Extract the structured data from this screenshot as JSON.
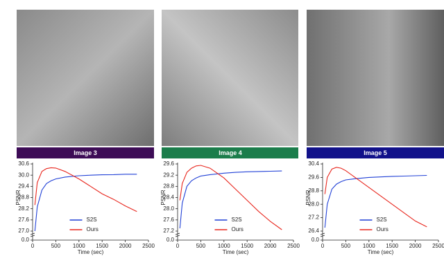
{
  "chart_data": [
    {
      "type": "line",
      "title": "Image 3",
      "title_color": "#3d0c56",
      "xlabel": "Time (sec)",
      "ylabel": "PSNR",
      "x": [
        50,
        100,
        200,
        300,
        400,
        500,
        700,
        1000,
        1250,
        1500,
        1750,
        2000,
        2250
      ],
      "series": [
        {
          "name": "S2S",
          "color": "#1f3fd6",
          "values": [
            27.0,
            28.3,
            29.2,
            29.55,
            29.7,
            29.8,
            29.9,
            29.97,
            30.0,
            30.02,
            30.03,
            30.05,
            30.05
          ]
        },
        {
          "name": "Ours",
          "color": "#e8251c",
          "values": [
            28.4,
            29.6,
            30.2,
            30.35,
            30.4,
            30.38,
            30.2,
            29.8,
            29.4,
            29.0,
            28.7,
            28.35,
            28.05
          ]
        }
      ],
      "xlim": [
        0,
        2500
      ],
      "xticks": [
        0,
        500,
        1000,
        1500,
        2000,
        2500
      ],
      "ylim": [
        27.0,
        30.6
      ],
      "yticks": [
        {
          "value": 27.0,
          "label": "27.0"
        },
        27.6,
        28.2,
        28.8,
        29.4,
        {
          "value": 30.0,
          "label": "30.0"
        },
        30.6
      ],
      "axis_break_tick": {
        "value": 0,
        "label": "0.0"
      },
      "legend": "lower center"
    },
    {
      "type": "line",
      "title": "Image 4",
      "title_color": "#1b7d4b",
      "xlabel": "Time (sec)",
      "ylabel": "PSNR",
      "x": [
        50,
        100,
        200,
        300,
        400,
        500,
        700,
        1000,
        1250,
        1500,
        1750,
        2000,
        2250
      ],
      "series": [
        {
          "name": "S2S",
          "color": "#1f3fd6",
          "values": [
            27.3,
            28.2,
            28.8,
            29.0,
            29.1,
            29.17,
            29.22,
            29.27,
            29.3,
            29.32,
            29.33,
            29.34,
            29.35
          ]
        },
        {
          "name": "Ours",
          "color": "#e8251c",
          "values": [
            28.3,
            28.9,
            29.3,
            29.45,
            29.53,
            29.55,
            29.45,
            29.1,
            28.7,
            28.3,
            27.9,
            27.55,
            27.25
          ]
        }
      ],
      "xlim": [
        0,
        2500
      ],
      "xticks": [
        0,
        500,
        1000,
        1500,
        2000,
        2500
      ],
      "ylim": [
        27.2,
        29.6
      ],
      "yticks": [
        27.2,
        27.6,
        {
          "value": 28.0,
          "label": "28.0"
        },
        28.4,
        28.8,
        29.2,
        29.6
      ],
      "axis_break_tick": {
        "value": 0,
        "label": "0.0"
      },
      "legend": "lower center"
    },
    {
      "type": "line",
      "title": "Image 5",
      "title_color": "#11118a",
      "xlabel": "Time (sec)",
      "ylabel": "PSNR",
      "x": [
        50,
        100,
        200,
        300,
        400,
        500,
        700,
        1000,
        1250,
        1500,
        1750,
        2000,
        2250
      ],
      "series": [
        {
          "name": "S2S",
          "color": "#1f3fd6",
          "values": [
            26.6,
            28.0,
            28.9,
            29.2,
            29.35,
            29.45,
            29.52,
            29.6,
            29.63,
            29.66,
            29.68,
            29.7,
            29.72
          ]
        },
        {
          "name": "Ours",
          "color": "#e8251c",
          "values": [
            28.6,
            29.6,
            30.1,
            30.2,
            30.15,
            30.0,
            29.6,
            29.0,
            28.5,
            28.0,
            27.5,
            27.0,
            26.65
          ]
        }
      ],
      "xlim": [
        0,
        2500
      ],
      "xticks": [
        0,
        500,
        1000,
        1500,
        2000,
        2500
      ],
      "ylim": [
        26.4,
        30.4
      ],
      "yticks": [
        26.4,
        27.2,
        {
          "value": 28.0,
          "label": "28.0"
        },
        28.8,
        29.6,
        30.4
      ],
      "axis_break_tick": {
        "value": 0,
        "label": "0.0"
      },
      "legend": "lower center"
    }
  ]
}
